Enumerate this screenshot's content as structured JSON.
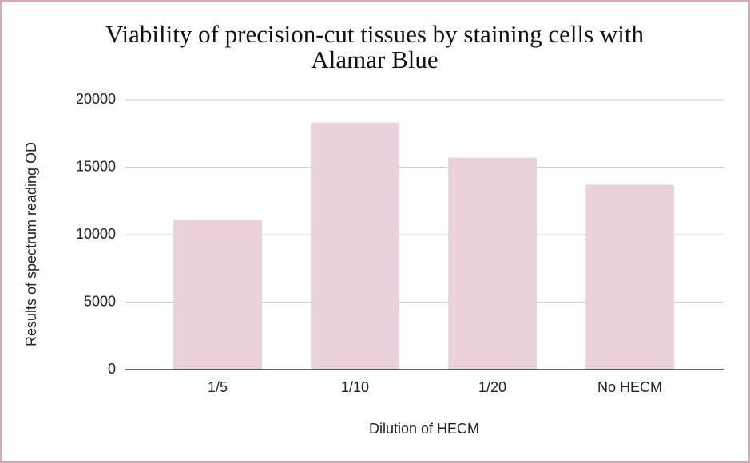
{
  "chart_data": {
    "type": "bar",
    "title": "Viability of precision-cut tissues by staining cells with",
    "title_line2": "Alamar Blue",
    "x_label": "Dilution of HECM",
    "y_label": "Results of spectrum reading OD",
    "categories": [
      "1/5",
      "1/10",
      "1/20",
      "No HECM"
    ],
    "values": [
      11100,
      18300,
      15700,
      13700
    ],
    "color": "#ead1dc",
    "ylim": [
      0,
      20000
    ],
    "yticks": [
      0,
      5000,
      10000,
      15000,
      20000
    ],
    "grid": true
  }
}
